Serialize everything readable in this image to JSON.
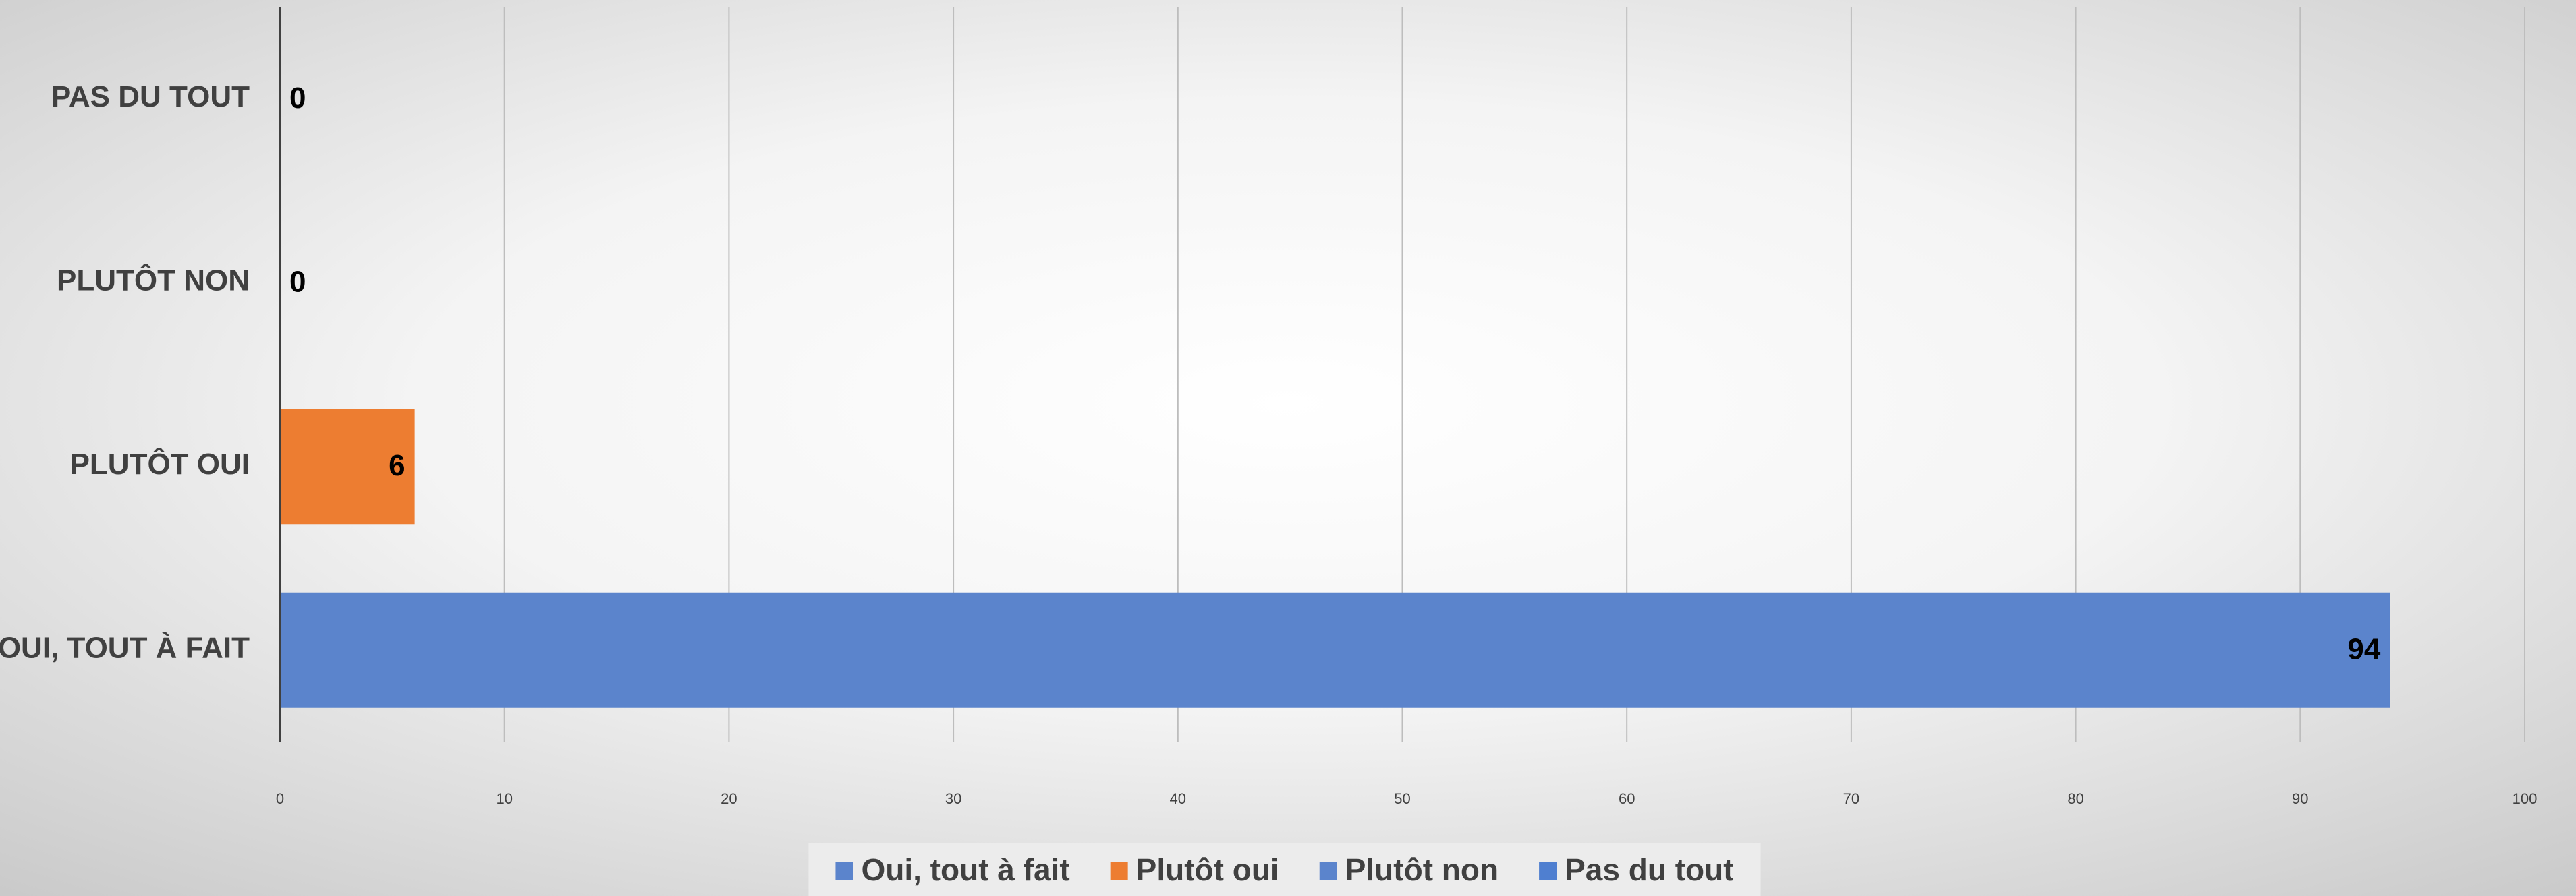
{
  "chart_data": {
    "type": "bar",
    "orientation": "horizontal",
    "categories": [
      "OUI, TOUT À FAIT",
      "PLUTÔT OUI",
      "PLUTÔT NON",
      "PAS DU TOUT"
    ],
    "values": [
      94,
      6,
      0,
      0
    ],
    "colors": [
      "#5b84cc",
      "#ed7d31",
      "#5b84cc",
      "#4f7fd0"
    ],
    "legend": [
      "Oui, tout à fait",
      "Plutôt oui",
      "Plutôt non",
      "Pas du tout"
    ],
    "xlim": [
      0,
      100
    ],
    "xticks": [
      0,
      10,
      20,
      30,
      40,
      50,
      60,
      70,
      80,
      90,
      100
    ],
    "grid": true,
    "legend_position": "bottom"
  }
}
